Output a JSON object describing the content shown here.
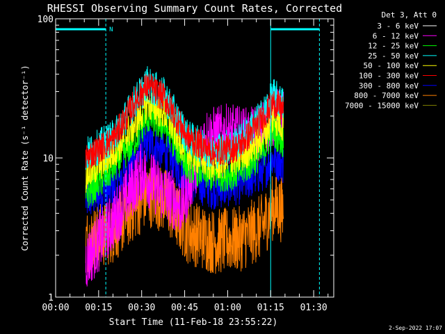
{
  "chart_data": {
    "type": "line",
    "title": "RHESSI Observing Summary Count Rates, Corrected",
    "xlabel": "Start Time (11-Feb-18 23:55:22)",
    "ylabel": "Corrected Count Rate (s⁻¹ detector⁻¹)",
    "yscale": "log",
    "ylim": [
      1,
      100
    ],
    "xlim_min": [
      0,
      97
    ],
    "x_ticks": [
      "00:00",
      "00:15",
      "00:30",
      "00:45",
      "01:00",
      "01:15",
      "01:30"
    ],
    "x_tick_minutes": [
      0,
      15,
      30,
      45,
      60,
      75,
      90
    ],
    "y_ticks": [
      "1",
      "10",
      "100"
    ],
    "y_tick_values": [
      1,
      10,
      100
    ],
    "data_range_min": [
      10.5,
      79.5
    ],
    "legend_header": "Det 3, Att 0",
    "legend_position": "right",
    "night_label": "N",
    "night_intervals_min": [
      [
        0,
        17.5
      ],
      [
        75,
        92
      ]
    ],
    "cyan_vlines_min": [
      0,
      17.5,
      75,
      92
    ],
    "series": [
      {
        "name": "3 - 6 keV",
        "color": "#ffffff",
        "base": 0,
        "noise": 0,
        "knots": []
      },
      {
        "name": "6 - 12 keV",
        "color": "#ff00ff",
        "base": 0,
        "noise": 0.5,
        "knots": [
          [
            10.5,
            1.8
          ],
          [
            20,
            3.5
          ],
          [
            30,
            8
          ],
          [
            36,
            6
          ],
          [
            44,
            4.5
          ],
          [
            52,
            14
          ],
          [
            60,
            15
          ],
          [
            68,
            14
          ],
          [
            72,
            16
          ],
          [
            76,
            20
          ],
          [
            79.5,
            19
          ]
        ]
      },
      {
        "name": "12 - 25 keV",
        "color": "#00ff00",
        "base": 0,
        "noise": 0.3,
        "knots": [
          [
            10.5,
            5.5
          ],
          [
            20,
            8.5
          ],
          [
            28,
            14
          ],
          [
            32,
            20
          ],
          [
            38,
            17
          ],
          [
            46,
            9
          ],
          [
            55,
            7.5
          ],
          [
            64,
            8
          ],
          [
            72,
            11
          ],
          [
            76,
            16
          ],
          [
            79.5,
            13
          ]
        ]
      },
      {
        "name": "25 - 50 keV",
        "color": "#00ffff",
        "base": 0,
        "noise": 0.3,
        "knots": [
          [
            10.5,
            10.5
          ],
          [
            20,
            14
          ],
          [
            28,
            26
          ],
          [
            32,
            34
          ],
          [
            38,
            28
          ],
          [
            46,
            14
          ],
          [
            55,
            11
          ],
          [
            64,
            13
          ],
          [
            72,
            20
          ],
          [
            76,
            28
          ],
          [
            79.5,
            24
          ]
        ]
      },
      {
        "name": "50 - 100 keV",
        "color": "#ffff00",
        "base": 0,
        "noise": 0.3,
        "knots": [
          [
            10.5,
            7.5
          ],
          [
            20,
            11
          ],
          [
            28,
            18
          ],
          [
            32,
            25
          ],
          [
            38,
            21
          ],
          [
            46,
            11
          ],
          [
            55,
            9
          ],
          [
            64,
            10
          ],
          [
            72,
            14
          ],
          [
            76,
            20
          ],
          [
            79.5,
            17
          ]
        ]
      },
      {
        "name": "100 - 300 keV",
        "color": "#ff0000",
        "base": 0,
        "noise": 0.25,
        "knots": [
          [
            10.5,
            10
          ],
          [
            20,
            13.5
          ],
          [
            28,
            26
          ],
          [
            32,
            33
          ],
          [
            38,
            27
          ],
          [
            46,
            14
          ],
          [
            55,
            11
          ],
          [
            64,
            12
          ],
          [
            72,
            19
          ],
          [
            76,
            25
          ],
          [
            79.5,
            22
          ]
        ]
      },
      {
        "name": "300 - 800 keV",
        "color": "#0000ff",
        "base": 0,
        "noise": 0.35,
        "knots": [
          [
            10.5,
            5
          ],
          [
            20,
            6
          ],
          [
            28,
            10
          ],
          [
            32,
            13
          ],
          [
            38,
            11
          ],
          [
            46,
            7
          ],
          [
            55,
            6
          ],
          [
            64,
            6.5
          ],
          [
            72,
            8
          ],
          [
            76,
            10
          ],
          [
            79.5,
            9
          ]
        ]
      },
      {
        "name": "800 - 7000 keV",
        "color": "#ff8000",
        "base": 0,
        "noise": 0.55,
        "knots": [
          [
            10.5,
            2.5
          ],
          [
            20,
            3
          ],
          [
            28,
            4.5
          ],
          [
            32,
            5.5
          ],
          [
            38,
            5
          ],
          [
            46,
            3
          ],
          [
            55,
            2.5
          ],
          [
            64,
            2.6
          ],
          [
            72,
            3.2
          ],
          [
            76,
            4.5
          ],
          [
            79.5,
            4.2
          ]
        ]
      },
      {
        "name": "7000 - 15000 keV",
        "color": "#808000",
        "base": 0,
        "noise": 0,
        "knots": []
      }
    ]
  },
  "footer": {
    "date": "2-Sep-2022 17:07"
  }
}
